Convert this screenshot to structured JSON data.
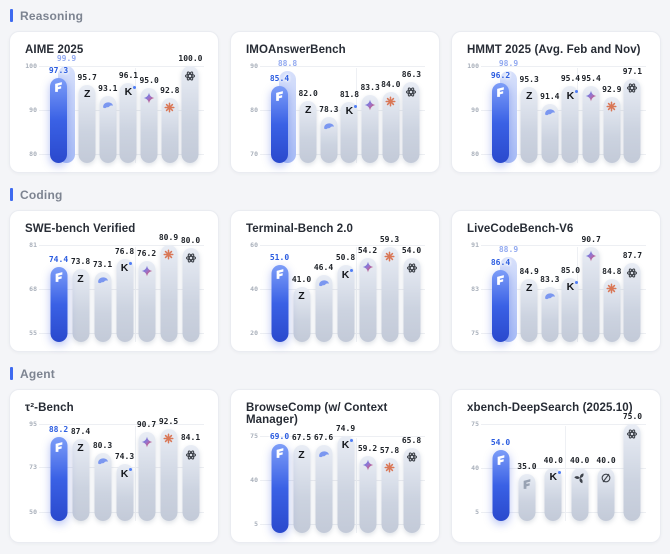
{
  "sections": [
    {
      "label": "Reasoning"
    },
    {
      "label": "Coding"
    },
    {
      "label": "Agent"
    }
  ],
  "colors": {
    "accent_blue": "#3E6AF0",
    "highlight_bar_blue": "#3A61E5",
    "ghost_bar_blue": "#A9BDF6",
    "highlight_label_blue": "#2B5CE0",
    "ghost_label_blue": "#93AAF0",
    "normal_bar_gray": "#C9D1DE",
    "claude_orange": "#D97757",
    "whale_blue": "#7B97F0",
    "gemini_blue": "#4285F4"
  },
  "chart_data": [
    {
      "type": "bar",
      "section": "Reasoning",
      "title": "AIME 2025",
      "yticks": [
        100,
        90,
        80
      ],
      "ylim": [
        80,
        100
      ],
      "separator_after_index": 3,
      "bars": [
        {
          "model_icon": "s-logo-icon",
          "value": 97.3,
          "ghost_value": 99.9,
          "highlight": true
        },
        {
          "model_icon": "z-logo-icon",
          "value": 95.7
        },
        {
          "model_icon": "whale-logo-icon",
          "value": 93.1
        },
        {
          "model_icon": "kimi-k-logo-icon",
          "value": 96.1
        },
        {
          "model_icon": "gemini-star-logo-icon",
          "value": 95.0
        },
        {
          "model_icon": "claude-asterisk-logo-icon",
          "value": 92.8
        },
        {
          "model_icon": "openai-logo-icon",
          "value": 100.0
        }
      ]
    },
    {
      "type": "bar",
      "section": "Reasoning",
      "title": "IMOAnswerBench",
      "yticks": [
        90,
        80,
        70
      ],
      "ylim": [
        70,
        90
      ],
      "separator_after_index": 3,
      "bars": [
        {
          "model_icon": "s-logo-icon",
          "value": 85.4,
          "ghost_value": 88.8,
          "highlight": true
        },
        {
          "model_icon": "z-logo-icon",
          "value": 82.0
        },
        {
          "model_icon": "whale-logo-icon",
          "value": 78.3
        },
        {
          "model_icon": "kimi-k-logo-icon",
          "value": 81.8
        },
        {
          "model_icon": "gemini-star-logo-icon",
          "value": 83.3
        },
        {
          "model_icon": "claude-asterisk-logo-icon",
          "value": 84.0
        },
        {
          "model_icon": "openai-logo-icon",
          "value": 86.3
        }
      ]
    },
    {
      "type": "bar",
      "section": "Reasoning",
      "title": "HMMT 2025 (Avg. Feb and Nov)",
      "yticks": [
        100,
        90,
        80
      ],
      "ylim": [
        80,
        100
      ],
      "separator_after_index": 3,
      "bars": [
        {
          "model_icon": "s-logo-icon",
          "value": 96.2,
          "ghost_value": 98.9,
          "highlight": true
        },
        {
          "model_icon": "z-logo-icon",
          "value": 95.3
        },
        {
          "model_icon": "whale-logo-icon",
          "value": 91.4
        },
        {
          "model_icon": "kimi-k-logo-icon",
          "value": 95.4
        },
        {
          "model_icon": "gemini-star-logo-icon",
          "value": 95.4
        },
        {
          "model_icon": "claude-asterisk-logo-icon",
          "value": 92.9
        },
        {
          "model_icon": "openai-logo-icon",
          "value": 97.1
        }
      ]
    },
    {
      "type": "bar",
      "section": "Coding",
      "title": "SWE-bench Verified",
      "yticks": [
        81,
        68,
        55
      ],
      "ylim": [
        55,
        81
      ],
      "separator_after_index": 3,
      "bars": [
        {
          "model_icon": "s-logo-icon",
          "value": 74.4,
          "highlight": true
        },
        {
          "model_icon": "z-logo-icon",
          "value": 73.8
        },
        {
          "model_icon": "whale-logo-icon",
          "value": 73.1
        },
        {
          "model_icon": "kimi-k-logo-icon",
          "value": 76.8
        },
        {
          "model_icon": "gemini-star-logo-icon",
          "value": 76.2
        },
        {
          "model_icon": "claude-asterisk-logo-icon",
          "value": 80.9
        },
        {
          "model_icon": "openai-logo-icon",
          "value": 80.0
        }
      ]
    },
    {
      "type": "bar",
      "section": "Coding",
      "title": "Terminal-Bench 2.0",
      "yticks": [
        60,
        40,
        20
      ],
      "ylim": [
        20,
        60
      ],
      "separator_after_index": 3,
      "bars": [
        {
          "model_icon": "s-logo-icon",
          "value": 51.0,
          "highlight": true
        },
        {
          "model_icon": "z-logo-icon",
          "value": 41.0
        },
        {
          "model_icon": "whale-logo-icon",
          "value": 46.4
        },
        {
          "model_icon": "kimi-k-logo-icon",
          "value": 50.8
        },
        {
          "model_icon": "gemini-star-logo-icon",
          "value": 54.2
        },
        {
          "model_icon": "claude-asterisk-logo-icon",
          "value": 59.3
        },
        {
          "model_icon": "openai-logo-icon",
          "value": 54.0
        }
      ]
    },
    {
      "type": "bar",
      "section": "Coding",
      "title": "LiveCodeBench-V6",
      "yticks": [
        91,
        83,
        75
      ],
      "ylim": [
        75,
        91
      ],
      "separator_after_index": 3,
      "bars": [
        {
          "model_icon": "s-logo-icon",
          "value": 86.4,
          "ghost_value": 88.9,
          "highlight": true
        },
        {
          "model_icon": "z-logo-icon",
          "value": 84.9
        },
        {
          "model_icon": "whale-logo-icon",
          "value": 83.3
        },
        {
          "model_icon": "kimi-k-logo-icon",
          "value": 85.0
        },
        {
          "model_icon": "gemini-star-logo-icon",
          "value": 90.7
        },
        {
          "model_icon": "claude-asterisk-logo-icon",
          "value": 84.8
        },
        {
          "model_icon": "openai-logo-icon",
          "value": 87.7
        }
      ]
    },
    {
      "type": "bar",
      "section": "Agent",
      "title": "τ²-Bench",
      "yticks": [
        95,
        73,
        50
      ],
      "ylim": [
        50,
        95
      ],
      "separator_after_index": 3,
      "bars": [
        {
          "model_icon": "s-logo-icon",
          "value": 88.2,
          "highlight": true
        },
        {
          "model_icon": "z-logo-icon",
          "value": 87.4
        },
        {
          "model_icon": "whale-logo-icon",
          "value": 80.3
        },
        {
          "model_icon": "kimi-k-logo-icon",
          "value": 74.3
        },
        {
          "model_icon": "gemini-star-logo-icon",
          "value": 90.7
        },
        {
          "model_icon": "claude-asterisk-logo-icon",
          "value": 92.5
        },
        {
          "model_icon": "openai-logo-icon",
          "value": 84.1
        }
      ]
    },
    {
      "type": "bar",
      "section": "Agent",
      "title": "BrowseComp (w/ Context Manager)",
      "yticks": [
        75,
        40,
        5
      ],
      "ylim": [
        5,
        75
      ],
      "separator_after_index": 3,
      "bars": [
        {
          "model_icon": "s-logo-icon",
          "value": 69.0,
          "highlight": true
        },
        {
          "model_icon": "z-logo-icon",
          "value": 67.5
        },
        {
          "model_icon": "whale-logo-icon",
          "value": 67.6
        },
        {
          "model_icon": "kimi-k-logo-icon",
          "value": 74.9
        },
        {
          "model_icon": "gemini-star-logo-icon",
          "value": 59.2
        },
        {
          "model_icon": "claude-asterisk-logo-icon",
          "value": 57.8
        },
        {
          "model_icon": "openai-logo-icon",
          "value": 65.8
        }
      ]
    },
    {
      "type": "bar",
      "section": "Agent",
      "title": "xbench-DeepSearch (2025.10)",
      "yticks": [
        75,
        40,
        5
      ],
      "ylim": [
        5,
        75
      ],
      "separator_after_index": 2,
      "bars": [
        {
          "model_icon": "s-logo-icon",
          "value": 54.0,
          "highlight": true
        },
        {
          "model_icon": "s-logo-icon",
          "value": 35.0,
          "icon_variant": "gray"
        },
        {
          "model_icon": "kimi-k-logo-icon",
          "value": 40.0
        },
        {
          "model_icon": "pinwheel-logo-icon",
          "value": 40.0
        },
        {
          "model_icon": "slashed-circle-logo-icon",
          "value": 40.0
        },
        {
          "model_icon": "openai-logo-icon",
          "value": 75.0
        }
      ]
    }
  ]
}
